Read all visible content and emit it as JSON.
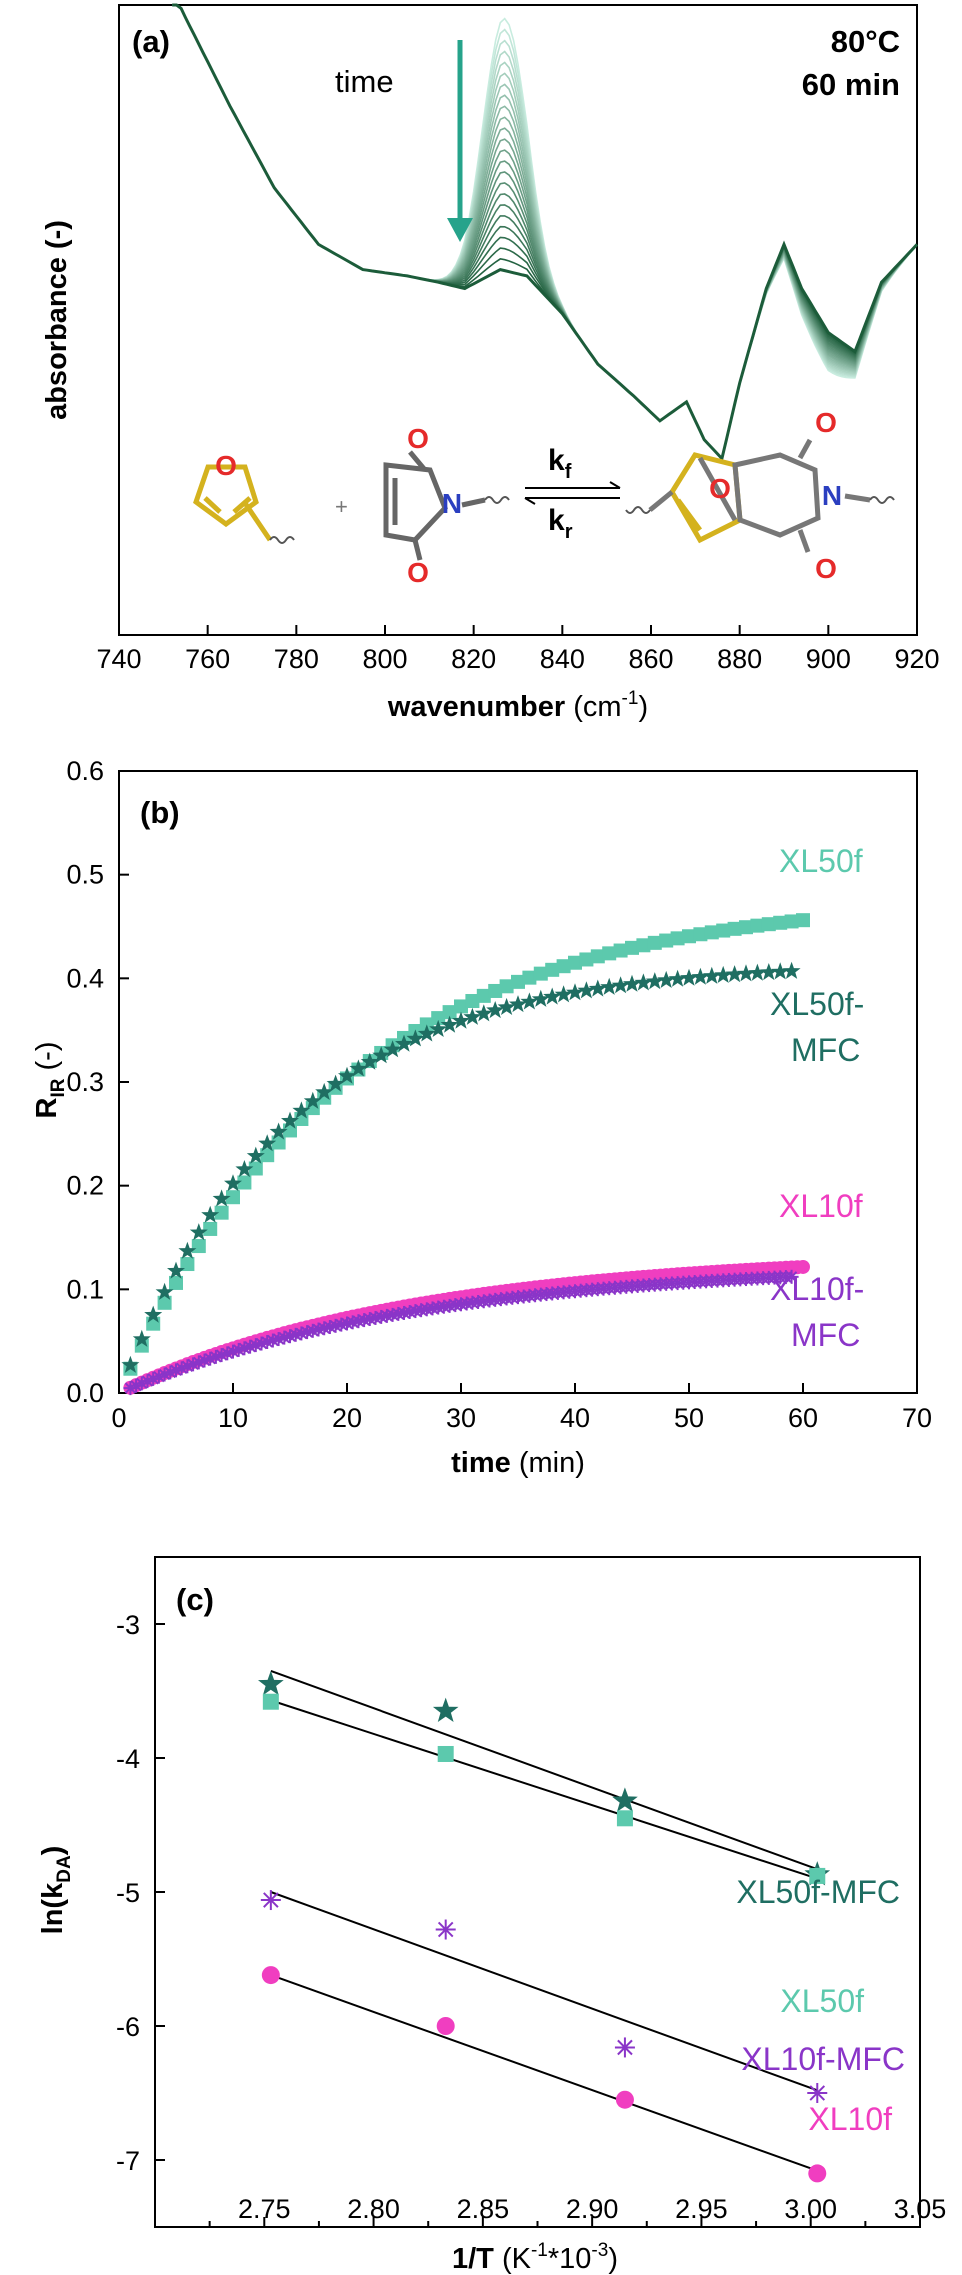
{
  "chart_data": [
    {
      "panel": "(a)",
      "type": "line",
      "xlabel_bold": "wavenumber",
      "xlabel_unit": "(cm",
      "xlabel_sup": "-1",
      "xlabel_close": ")",
      "ylabel": "absorbance (-)",
      "xlim": [
        740,
        920
      ],
      "xticks": [
        "740",
        "760",
        "780",
        "800",
        "820",
        "840",
        "860",
        "880",
        "900",
        "920"
      ],
      "annotations": {
        "time": "time",
        "temperature": "80°C",
        "duration": "60 min",
        "kf": "k",
        "kf_sub": "f",
        "kr": "k",
        "kr_sub": "r",
        "O": "O",
        "N": "N",
        "plus": "+"
      },
      "colors": {
        "early": "#c8ecdf",
        "late": "#1c5c3a",
        "arrow": "#26a38b",
        "furan": "#d4b21e",
        "oxygen": "#e52a2a",
        "nitrogen": "#2b3fc0"
      }
    },
    {
      "panel": "(b)",
      "type": "scatter",
      "xlabel_bold": "time",
      "xlabel_unit": "(min)",
      "ylabel": "R",
      "ylabel_sub": "IR",
      "ylabel_unit": "(-)",
      "xlim": [
        0,
        70
      ],
      "ylim": [
        0,
        0.6
      ],
      "xticks": [
        "0",
        "10",
        "20",
        "30",
        "40",
        "50",
        "60",
        "70"
      ],
      "yticks": [
        "0.0",
        "0.1",
        "0.2",
        "0.3",
        "0.4",
        "0.5",
        "0.6"
      ],
      "series": [
        {
          "name": "XL50f",
          "color": "#5cc9ad",
          "marker": "square",
          "plateau": 0.48,
          "tau": 20,
          "tmax": 60
        },
        {
          "name_lines": [
            "XL50f-",
            "MFC"
          ],
          "color": "#1f6e62",
          "marker": "star",
          "plateau": 0.415,
          "tau": 15,
          "tmax": 59
        },
        {
          "name": "XL10f",
          "color": "#f03ec0",
          "marker": "circle",
          "plateau": 0.135,
          "tau": 26,
          "tmax": 60
        },
        {
          "name_lines": [
            "XL10f-",
            "MFC"
          ],
          "color": "#8a35c8",
          "marker": "asterisk",
          "plateau": 0.125,
          "tau": 26,
          "tmax": 59
        }
      ]
    },
    {
      "panel": "(c)",
      "type": "scatter",
      "xlabel_bold": "1/T",
      "xlabel_unit": "(K",
      "xlabel_sup": "-1",
      "xlabel_tail": "*10",
      "xlabel_sup2": "-3",
      "xlabel_close": ")",
      "ylabel": "ln(k",
      "ylabel_sub": "DA",
      "ylabel_close": ")",
      "xlim": [
        2.7,
        3.05
      ],
      "ylim": [
        -7.5,
        -2.5
      ],
      "xticks": [
        "2.75",
        "2.80",
        "2.85",
        "2.90",
        "2.95",
        "3.00",
        "3.05"
      ],
      "yticks": [
        "-3",
        "-4",
        "-5",
        "-6",
        "-7"
      ],
      "series": [
        {
          "name": "XL50f-MFC",
          "color": "#1f6e62",
          "marker": "star",
          "x": [
            2.753,
            2.833,
            2.915,
            3.003
          ],
          "y": [
            -3.45,
            -3.65,
            -4.32,
            -4.87
          ],
          "fit": [
            [
              2.753,
              -3.35
            ],
            [
              3.003,
              -4.83
            ]
          ]
        },
        {
          "name": "XL50f",
          "color": "#5cc9ad",
          "marker": "square",
          "x": [
            2.753,
            2.833,
            2.915,
            3.003
          ],
          "y": [
            -3.58,
            -3.97,
            -4.45,
            -4.88
          ],
          "fit": [
            [
              2.753,
              -3.57
            ],
            [
              3.003,
              -4.9
            ]
          ]
        },
        {
          "name": "XL10f-MFC",
          "color": "#8a35c8",
          "marker": "asterisk",
          "x": [
            2.753,
            2.833,
            2.915,
            3.003
          ],
          "y": [
            -5.06,
            -5.28,
            -6.16,
            -6.5
          ],
          "fit": [
            [
              2.753,
              -5.0
            ],
            [
              3.003,
              -6.48
            ]
          ]
        },
        {
          "name": "XL10f",
          "color": "#f03ec0",
          "marker": "circle",
          "x": [
            2.753,
            2.833,
            2.915,
            3.003
          ],
          "y": [
            -5.62,
            -6.0,
            -6.55,
            -7.1
          ],
          "fit": [
            [
              2.753,
              -5.62
            ],
            [
              3.003,
              -7.08
            ]
          ]
        }
      ]
    }
  ]
}
